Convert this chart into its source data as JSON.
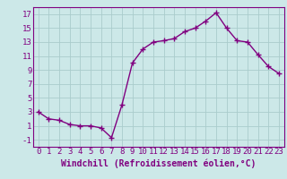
{
  "x": [
    0,
    1,
    2,
    3,
    4,
    5,
    6,
    7,
    8,
    9,
    10,
    11,
    12,
    13,
    14,
    15,
    16,
    17,
    18,
    19,
    20,
    21,
    22,
    23
  ],
  "y": [
    3.0,
    2.0,
    1.8,
    1.2,
    1.0,
    1.0,
    0.7,
    -0.7,
    4.0,
    10.0,
    12.0,
    13.0,
    13.2,
    13.5,
    14.5,
    15.0,
    16.0,
    17.2,
    15.0,
    13.2,
    13.0,
    11.2,
    9.5,
    8.5
  ],
  "ylim": [
    -2,
    18
  ],
  "xlim": [
    -0.5,
    23.5
  ],
  "yticks": [
    -1,
    1,
    3,
    5,
    7,
    9,
    11,
    13,
    15,
    17
  ],
  "xticks": [
    0,
    1,
    2,
    3,
    4,
    5,
    6,
    7,
    8,
    9,
    10,
    11,
    12,
    13,
    14,
    15,
    16,
    17,
    18,
    19,
    20,
    21,
    22,
    23
  ],
  "line_color": "#800080",
  "marker": "+",
  "marker_size": 4,
  "line_width": 1.0,
  "background_color": "#cce8e8",
  "grid_color": "#aacccc",
  "xlabel": "Windchill (Refroidissement éolien,°C)",
  "xlabel_fontsize": 7,
  "tick_fontsize": 6.5
}
